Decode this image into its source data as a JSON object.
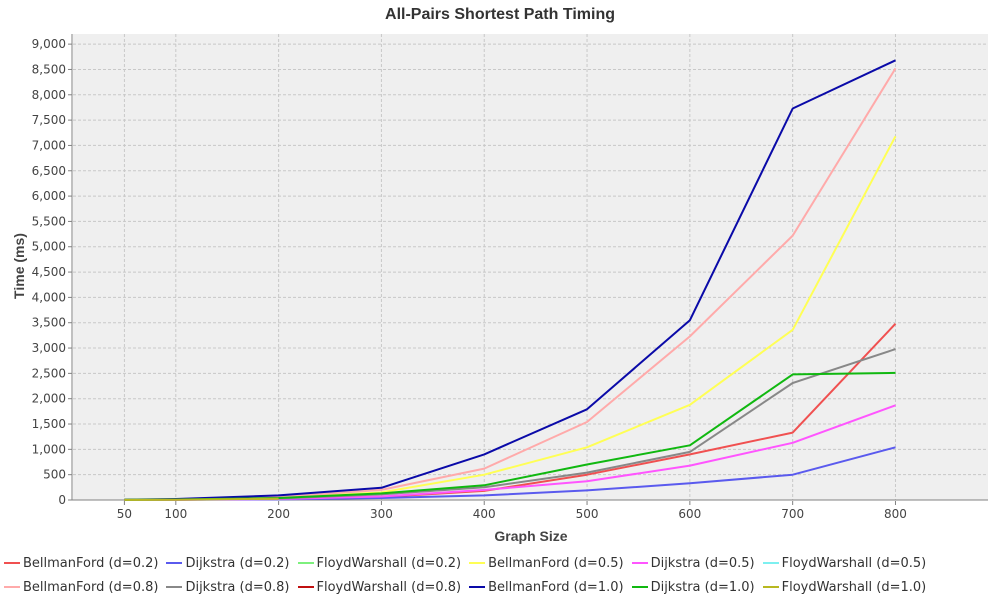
{
  "chart_data": {
    "type": "line",
    "title": "All-Pairs Shortest Path Timing",
    "xlabel": "Graph Size",
    "ylabel": "Time (ms)",
    "x": [
      50,
      100,
      200,
      300,
      400,
      500,
      600,
      700,
      800
    ],
    "xticks": [
      "50",
      "100",
      "200",
      "300",
      "400",
      "500",
      "600",
      "700",
      "800"
    ],
    "xlim": [
      0,
      890
    ],
    "ylim": [
      0,
      9200
    ],
    "yticks": [
      "0",
      "500",
      "1,000",
      "1,500",
      "2,000",
      "2,500",
      "3,000",
      "3,500",
      "4,000",
      "4,500",
      "5,000",
      "5,500",
      "6,000",
      "6,500",
      "7,000",
      "7,500",
      "8,000",
      "8,500",
      "9,000"
    ],
    "ytick_values": [
      0,
      500,
      1000,
      1500,
      2000,
      2500,
      3000,
      3500,
      4000,
      4500,
      5000,
      5500,
      6000,
      6500,
      7000,
      7500,
      8000,
      8500,
      9000
    ],
    "grid": true,
    "legend_position": "bottom",
    "series": [
      {
        "name": "BellmanFord (d=0.2)",
        "color": "#f05050",
        "values": [
          3,
          6,
          20,
          60,
          180,
          500,
          900,
          1330,
          3480
        ]
      },
      {
        "name": "Dijkstra (d=0.2)",
        "color": "#5a5aee",
        "values": [
          2,
          4,
          12,
          40,
          90,
          190,
          330,
          500,
          1040
        ]
      },
      {
        "name": "FloydWarshall (d=0.2)",
        "color": "#7df07d",
        "values": [
          null,
          null,
          null,
          null,
          null,
          null,
          null,
          null,
          null
        ]
      },
      {
        "name": "BellmanFord (d=0.5)",
        "color": "#ffff55",
        "values": [
          3,
          10,
          40,
          150,
          500,
          1040,
          1880,
          3360,
          7180
        ]
      },
      {
        "name": "Dijkstra (d=0.5)",
        "color": "#ff55ff",
        "values": [
          2,
          5,
          20,
          70,
          200,
          370,
          680,
          1130,
          1870
        ]
      },
      {
        "name": "FloydWarshall (d=0.5)",
        "color": "#7df0f0",
        "values": [
          null,
          null,
          null,
          null,
          null,
          null,
          null,
          null,
          null
        ]
      },
      {
        "name": "BellmanFord (d=0.8)",
        "color": "#ffaaaa",
        "values": [
          4,
          15,
          60,
          200,
          620,
          1540,
          3230,
          5220,
          8520
        ]
      },
      {
        "name": "Dijkstra (d=0.8)",
        "color": "#888888",
        "values": [
          3,
          8,
          30,
          110,
          250,
          540,
          950,
          2310,
          2980
        ]
      },
      {
        "name": "FloydWarshall (d=0.8)",
        "color": "#c01010",
        "values": [
          null,
          null,
          null,
          null,
          null,
          null,
          null,
          null,
          null
        ]
      },
      {
        "name": "BellmanFord (d=1.0)",
        "color": "#0a0aa8",
        "values": [
          5,
          20,
          90,
          240,
          900,
          1790,
          3550,
          7730,
          8680
        ]
      },
      {
        "name": "Dijkstra (d=1.0)",
        "color": "#10b810",
        "values": [
          3,
          10,
          40,
          130,
          290,
          700,
          1080,
          2480,
          2510
        ]
      },
      {
        "name": "FloydWarshall (d=1.0)",
        "color": "#b8b820",
        "values": [
          2,
          6,
          25,
          null,
          null,
          null,
          null,
          null,
          null
        ]
      }
    ]
  }
}
